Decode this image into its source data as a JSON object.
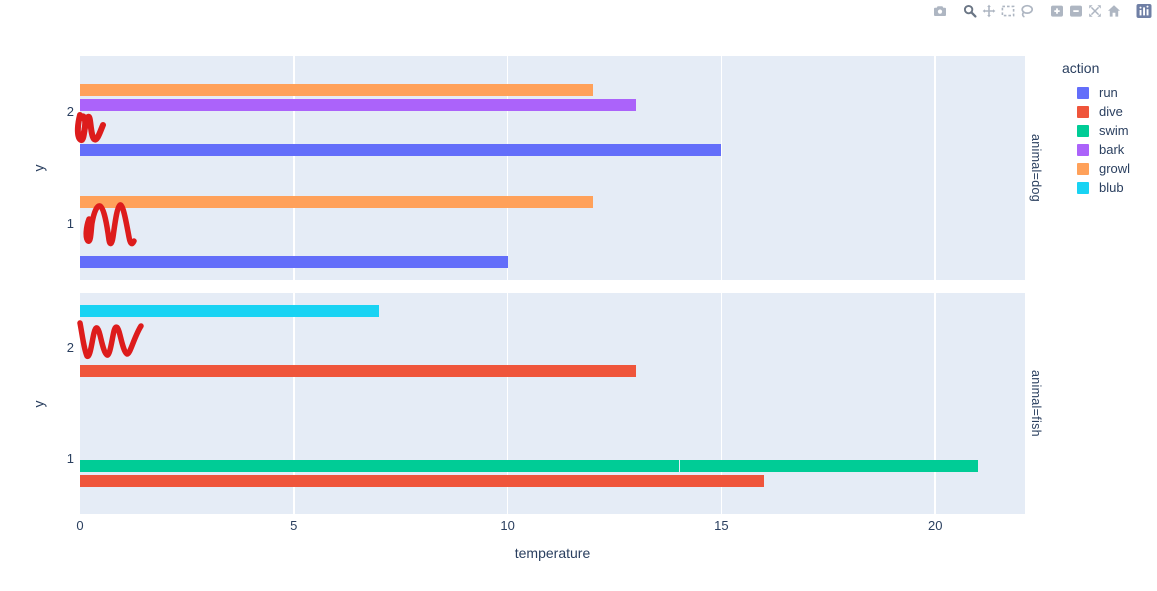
{
  "modebar": {
    "icons": [
      {
        "name": "camera-icon",
        "active": false
      },
      {
        "name": "zoom-icon",
        "active": true
      },
      {
        "name": "pan-icon",
        "active": false
      },
      {
        "name": "box-select-icon",
        "active": false
      },
      {
        "name": "lasso-select-icon",
        "active": false
      },
      {
        "name": "zoom-in-icon",
        "active": false
      },
      {
        "name": "zoom-out-icon",
        "active": false
      },
      {
        "name": "autoscale-icon",
        "active": false
      },
      {
        "name": "reset-axes-icon",
        "active": false
      },
      {
        "name": "plotly-logo-icon",
        "active": false
      }
    ],
    "icon_color": "#aeb6c2",
    "active_icon_color": "#6b7685",
    "logo_color": "#6f7fa5"
  },
  "colors": {
    "plot_background": "#E5ECF6",
    "gridline": "#ffffff",
    "text": "#2a3f5f",
    "annotation_red": "#dd1c1c"
  },
  "legend": {
    "title": "action",
    "items": [
      {
        "label": "run",
        "color": "#636EFA"
      },
      {
        "label": "dive",
        "color": "#EF553B"
      },
      {
        "label": "swim",
        "color": "#00CC96"
      },
      {
        "label": "bark",
        "color": "#AB63FA"
      },
      {
        "label": "growl",
        "color": "#FFA15A"
      },
      {
        "label": "blub",
        "color": "#19D3F3"
      }
    ]
  },
  "chart_data": {
    "type": "bar",
    "orientation": "horizontal",
    "barmode": "group",
    "xlabel": "temperature",
    "ylabel": "y",
    "legend_title": "action",
    "x_ticks": [
      0,
      5,
      10,
      15,
      20
    ],
    "xlim": [
      0,
      22.1
    ],
    "grid": true,
    "legend_position": "right",
    "slot_order_top_to_bottom": [
      "blub",
      "growl",
      "bark",
      "swim",
      "dive",
      "run"
    ],
    "facets": [
      {
        "label": "animal=dog",
        "y_categories": [
          "2",
          "1"
        ],
        "bars": [
          {
            "y": "2",
            "action": "growl",
            "value": 12
          },
          {
            "y": "2",
            "action": "bark",
            "value": 13
          },
          {
            "y": "2",
            "action": "run",
            "value": 15
          },
          {
            "y": "1",
            "action": "growl",
            "value": 12
          },
          {
            "y": "1",
            "action": "run",
            "value": 10
          }
        ]
      },
      {
        "label": "animal=fish",
        "y_categories": [
          "2",
          "1"
        ],
        "bars": [
          {
            "y": "2",
            "action": "blub",
            "value": 7
          },
          {
            "y": "2",
            "action": "dive",
            "value": 13
          },
          {
            "y": "1",
            "action": "swim",
            "value": 21,
            "segments": [
              14,
              7
            ]
          },
          {
            "y": "1",
            "action": "dive",
            "value": 16
          }
        ]
      }
    ],
    "annotations": [
      {
        "name": "red-scribble-dog-y2",
        "description": "hand-drawn red pen squiggle near x=0 at y=2 in dog facet",
        "stroke_width": 6,
        "paths": [
          "M80 115 C77 127 77 138 81 140 C85 141 84 121 88 117 C91 114 90 134 94 139 C97 142 100 132 103 125",
          "M81 118 C85 112 87 124 83 135"
        ]
      },
      {
        "name": "red-scribble-dog-y1",
        "description": "hand-drawn red pen M-shaped squiggle near x=0 at y=1 in dog facet",
        "stroke_width": 5.5,
        "paths": [
          "M89 219 C86 227 85 238 88 241 C91 243 91 230 92 223 C94 212 97 205 100 206 C104 208 107 225 109 240 C110 246 112 244 113 237 C115 223 117 207 120 205 C123 204 126 221 129 237 C130 243 132 246 134 241"
        ]
      },
      {
        "name": "red-scribble-fish-y2",
        "description": "hand-drawn red pen W-shaped squiggle near x=0 at y=2 in fish facet",
        "stroke_width": 5.5,
        "paths": [
          "M80 323 C82 333 84 350 87 356 C90 359 92 341 94 333 C96 325 98 327 100 335 C102 343 104 353 107 355 C110 356 112 339 114 331 C116 324 118 327 120 335 C122 343 124 352 127 354 C130 355 134 337 141 326"
        ]
      }
    ]
  }
}
